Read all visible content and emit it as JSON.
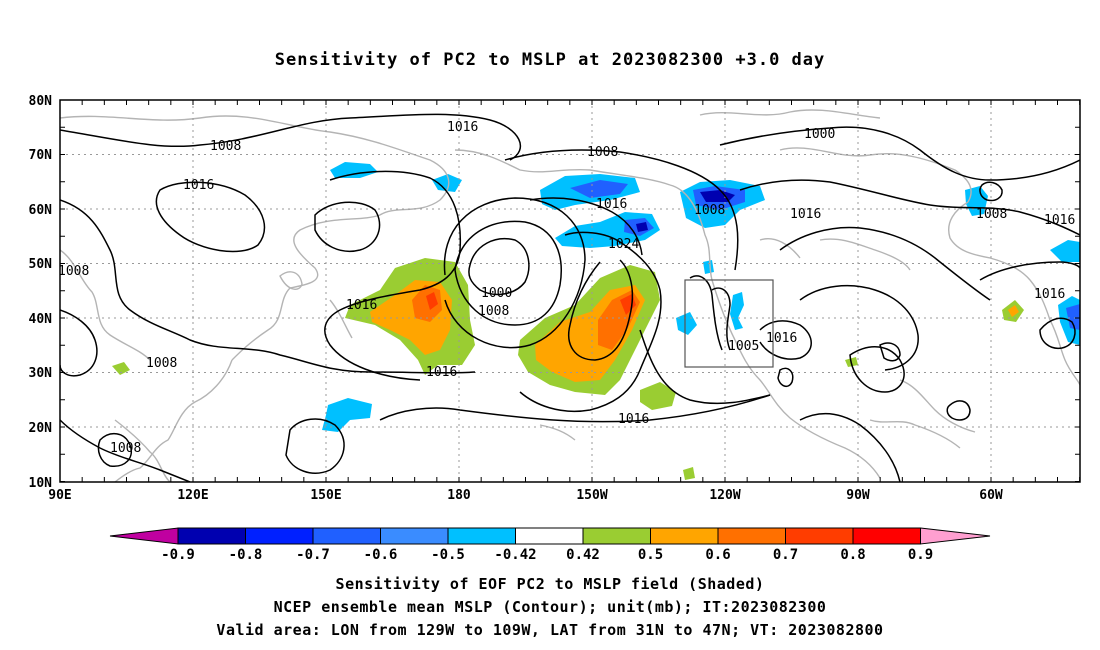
{
  "title": "Sensitivity of PC2 to MSLP at 2023082300 +3.0 day",
  "axes": {
    "x_ticks": [
      "90E",
      "120E",
      "150E",
      "180",
      "150W",
      "120W",
      "90W",
      "60W"
    ],
    "y_ticks": [
      "80N",
      "70N",
      "60N",
      "50N",
      "40N",
      "30N",
      "20N",
      "10N"
    ]
  },
  "contour_labels": [
    {
      "text": "1016"
    },
    {
      "text": "1008"
    },
    {
      "text": "1016"
    },
    {
      "text": "1008"
    },
    {
      "text": "1016"
    },
    {
      "text": "1008"
    },
    {
      "text": "1000"
    },
    {
      "text": "1008"
    },
    {
      "text": "1016"
    },
    {
      "text": "1024"
    },
    {
      "text": "1016"
    },
    {
      "text": "1008"
    },
    {
      "text": "1016"
    },
    {
      "text": "1000"
    },
    {
      "text": "1008"
    },
    {
      "text": "1016"
    },
    {
      "text": "1008"
    },
    {
      "text": "1016"
    },
    {
      "text": "1008"
    },
    {
      "text": "1016"
    },
    {
      "text": "1005"
    },
    {
      "text": "1016"
    },
    {
      "text": "1008"
    }
  ],
  "colorbar": {
    "colors": [
      "#c000a0",
      "#0000b0",
      "#0020ff",
      "#2060ff",
      "#3a8cff",
      "#00c0ff",
      "#ffffff",
      "#9acd32",
      "#ffa500",
      "#ff7000",
      "#ff3d00",
      "#ff0000",
      "#ff9fd0"
    ],
    "ticks": [
      "-0.9",
      "-0.8",
      "-0.7",
      "-0.6",
      "-0.5",
      "-0.42",
      "0.42",
      "0.5",
      "0.6",
      "0.7",
      "0.8",
      "0.9"
    ]
  },
  "captions": {
    "line1": "Sensitivity of EOF PC2 to MSLP field (Shaded)",
    "line2": "NCEP ensemble mean MSLP (Contour); unit(mb); IT:2023082300",
    "line3": "Valid area: LON from 129W to 109W, LAT from 31N to 47N; VT: 2023082800"
  },
  "valid_area": {
    "lon_min": -129,
    "lon_max": -109,
    "lat_min": 31,
    "lat_max": 47
  },
  "colors": {
    "coast": "#b4b4b4",
    "contour": "#000000",
    "grid": "#999999"
  }
}
